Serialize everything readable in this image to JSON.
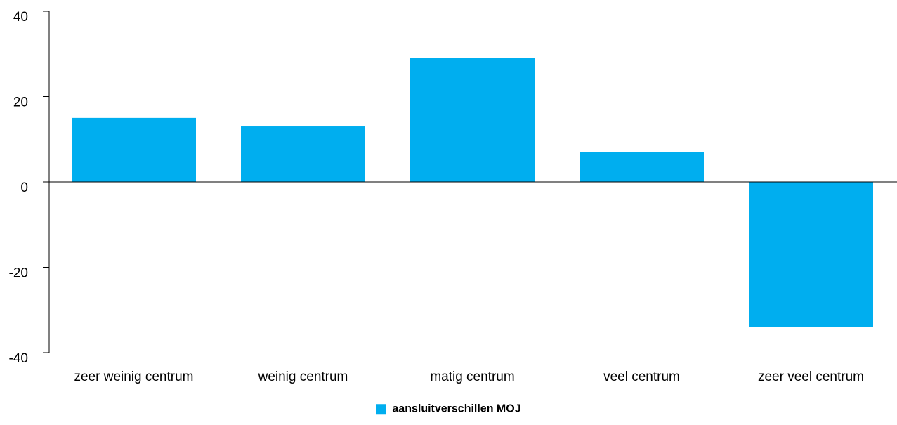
{
  "colors": {
    "bar": "#00aeef",
    "axis": "#000000"
  },
  "chart_data": {
    "type": "bar",
    "categories": [
      "zeer weinig centrum",
      "weinig centrum",
      "matig centrum",
      "veel centrum",
      "zeer veel centrum"
    ],
    "series": [
      {
        "name": "aansluitverschillen MOJ",
        "values": [
          15,
          13,
          29,
          7,
          -34
        ]
      }
    ],
    "ylim": [
      -40,
      40
    ],
    "yticks": [
      -40,
      -20,
      0,
      20,
      40
    ],
    "ytick_labels": [
      "-40",
      "-20",
      "0",
      "20",
      "40"
    ],
    "legend_position": "bottom-center",
    "grid": false
  }
}
